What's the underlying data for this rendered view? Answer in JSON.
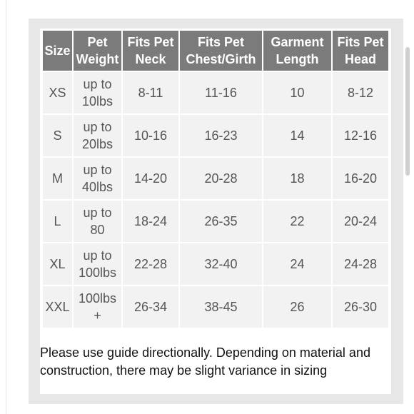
{
  "table": {
    "headers": [
      "Size",
      "Pet Weight",
      "Fits Pet Neck",
      "Fits Pet Chest/Girth",
      "Garment Length",
      "Fits Pet Head"
    ],
    "header_lines": [
      [
        "Size",
        ""
      ],
      [
        "Pet",
        "Weight"
      ],
      [
        "Fits Pet",
        "Neck"
      ],
      [
        "Fits Pet",
        "Chest/Girth"
      ],
      [
        "Garment",
        "Length"
      ],
      [
        "Fits Pet",
        "Head"
      ]
    ],
    "rows": [
      {
        "size": "XS",
        "weight": [
          "up to",
          "10lbs"
        ],
        "neck": "8-11",
        "chest": "11-16",
        "length": "10",
        "head": "8-12"
      },
      {
        "size": "S",
        "weight": [
          "up to",
          "20lbs"
        ],
        "neck": "10-16",
        "chest": "16-23",
        "length": "14",
        "head": "12-16"
      },
      {
        "size": "M",
        "weight": [
          "up to",
          "40lbs"
        ],
        "neck": "14-20",
        "chest": "20-28",
        "length": "18",
        "head": "16-20"
      },
      {
        "size": "L",
        "weight": [
          "up to",
          "80"
        ],
        "neck": "18-24",
        "chest": "26-35",
        "length": "22",
        "head": "20-24"
      },
      {
        "size": "XL",
        "weight": [
          "up to",
          "100lbs"
        ],
        "neck": "22-28",
        "chest": "32-40",
        "length": "24",
        "head": "24-28"
      },
      {
        "size": "XXL",
        "weight": [
          "100lbs",
          "+"
        ],
        "neck": "26-34",
        "chest": "38-45",
        "length": "26",
        "head": "26-30"
      }
    ]
  },
  "note": "Please use guide directionally. Depending on material and construction, there may be slight variance in sizing",
  "colors": {
    "header_bg": "#7b7b7b",
    "cell_bg": "#f2f2f2",
    "panel_bg": "#e7e7e7"
  }
}
